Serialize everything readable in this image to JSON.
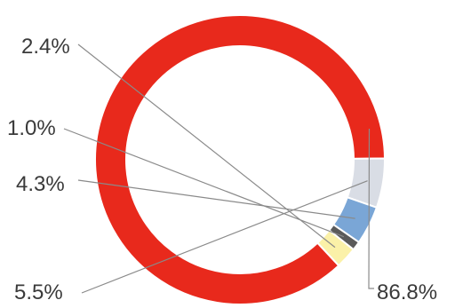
{
  "chart_data": {
    "type": "pie",
    "variant": "donut",
    "title": "",
    "legend": "none",
    "slices": [
      {
        "label": "86.8%",
        "value": 86.8,
        "color": "#e8291c"
      },
      {
        "label": "5.5%",
        "value": 5.5,
        "color": "#d9dde5"
      },
      {
        "label": "4.3%",
        "value": 4.3,
        "color": "#7aa6d6"
      },
      {
        "label": "1.0%",
        "value": 1.0,
        "color": "#5a5a5a"
      },
      {
        "label": "2.4%",
        "value": 2.4,
        "color": "#fbf1a8"
      }
    ]
  }
}
